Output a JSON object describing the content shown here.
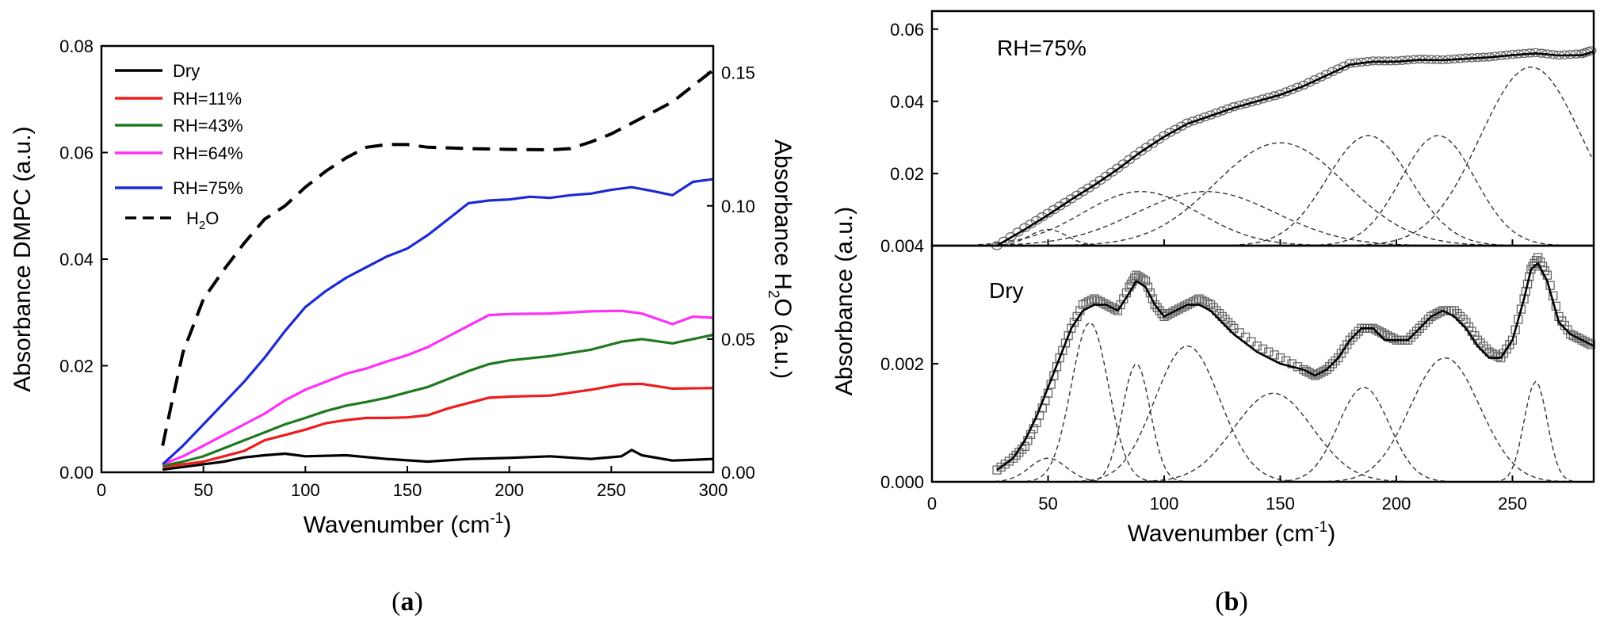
{
  "chart_data": [
    {
      "panel": "(a)",
      "caption_letter": "a",
      "type": "line",
      "xlabel_main": "Wavenumber (cm",
      "xlabel_sup": "-1",
      "xlabel_end": ")",
      "ylabel": "Absorbance DMPC (a.u.)",
      "y2label_main": "Absorbance H",
      "y2label_sub": "2",
      "y2label_end": "O (a.u.)",
      "xlim": [
        0,
        300
      ],
      "ylim": [
        0,
        0.08
      ],
      "y2lim": [
        0,
        0.16
      ],
      "xticks": [
        "0",
        "50",
        "100",
        "150",
        "200",
        "250",
        "300"
      ],
      "yticks": [
        "0.00",
        "0.02",
        "0.04",
        "0.06",
        "0.08"
      ],
      "y2ticks": [
        "0.00",
        "0.05",
        "0.10",
        "0.15"
      ],
      "series": [
        {
          "name": "Dry",
          "color": "#000000",
          "style": "solid",
          "x": [
            30,
            40,
            50,
            60,
            70,
            80,
            90,
            100,
            120,
            140,
            160,
            180,
            200,
            220,
            240,
            255,
            260,
            265,
            280,
            300
          ],
          "y": [
            0.0005,
            0.001,
            0.0015,
            0.002,
            0.0028,
            0.0032,
            0.0035,
            0.003,
            0.0032,
            0.0025,
            0.002,
            0.0025,
            0.0027,
            0.003,
            0.0025,
            0.003,
            0.0042,
            0.0032,
            0.0022,
            0.0025
          ]
        },
        {
          "name": "RH=11%",
          "color": "#ee1c1c",
          "style": "solid",
          "x": [
            30,
            40,
            50,
            60,
            70,
            80,
            90,
            100,
            110,
            120,
            130,
            140,
            150,
            160,
            170,
            180,
            190,
            200,
            220,
            240,
            255,
            265,
            280,
            300
          ],
          "y": [
            0.001,
            0.0015,
            0.002,
            0.003,
            0.004,
            0.006,
            0.007,
            0.008,
            0.0092,
            0.0098,
            0.0102,
            0.0102,
            0.0103,
            0.0107,
            0.012,
            0.013,
            0.014,
            0.0142,
            0.0144,
            0.0155,
            0.0165,
            0.0166,
            0.0157,
            0.0158
          ]
        },
        {
          "name": "RH=43%",
          "color": "#1e7a1e",
          "style": "solid",
          "x": [
            30,
            40,
            50,
            60,
            70,
            80,
            90,
            100,
            110,
            120,
            130,
            140,
            150,
            160,
            170,
            180,
            190,
            200,
            220,
            240,
            255,
            265,
            280,
            300
          ],
          "y": [
            0.0012,
            0.002,
            0.003,
            0.0045,
            0.006,
            0.0075,
            0.009,
            0.0102,
            0.0115,
            0.0125,
            0.0132,
            0.014,
            0.015,
            0.016,
            0.0175,
            0.019,
            0.0203,
            0.021,
            0.0218,
            0.023,
            0.0245,
            0.025,
            0.0242,
            0.0258
          ]
        },
        {
          "name": "RH=64%",
          "color": "#ff2ff7",
          "style": "solid",
          "x": [
            30,
            40,
            50,
            60,
            70,
            80,
            90,
            100,
            110,
            120,
            130,
            140,
            150,
            160,
            170,
            180,
            190,
            200,
            220,
            240,
            255,
            265,
            280,
            290,
            300
          ],
          "y": [
            0.0015,
            0.003,
            0.005,
            0.007,
            0.009,
            0.011,
            0.0135,
            0.0155,
            0.017,
            0.0185,
            0.0195,
            0.0208,
            0.022,
            0.0235,
            0.0255,
            0.0275,
            0.0295,
            0.0297,
            0.0298,
            0.0302,
            0.0303,
            0.0298,
            0.0278,
            0.0292,
            0.029
          ]
        },
        {
          "name": "RH=75%",
          "color": "#1c2ad4",
          "style": "solid",
          "x": [
            30,
            40,
            50,
            60,
            70,
            80,
            90,
            100,
            110,
            120,
            130,
            140,
            150,
            160,
            170,
            180,
            190,
            200,
            210,
            220,
            230,
            240,
            250,
            260,
            270,
            280,
            290,
            300
          ],
          "y": [
            0.0015,
            0.005,
            0.009,
            0.013,
            0.017,
            0.0215,
            0.0265,
            0.031,
            0.034,
            0.0365,
            0.0385,
            0.0405,
            0.042,
            0.0445,
            0.0475,
            0.0505,
            0.051,
            0.0512,
            0.0517,
            0.0515,
            0.052,
            0.0523,
            0.053,
            0.0535,
            0.0528,
            0.052,
            0.0545,
            0.055
          ]
        },
        {
          "name": "H2O",
          "color": "#000000",
          "style": "dashed",
          "axis": "right",
          "x": [
            30,
            35,
            40,
            50,
            60,
            70,
            80,
            90,
            100,
            110,
            120,
            130,
            140,
            150,
            160,
            180,
            200,
            220,
            230,
            240,
            250,
            260,
            270,
            280,
            290,
            300
          ],
          "y": [
            0.01,
            0.028,
            0.045,
            0.065,
            0.076,
            0.086,
            0.095,
            0.1,
            0.107,
            0.113,
            0.118,
            0.122,
            0.123,
            0.123,
            0.122,
            0.1215,
            0.1212,
            0.121,
            0.1215,
            0.124,
            0.127,
            0.131,
            0.135,
            0.139,
            0.145,
            0.151
          ]
        }
      ],
      "legend": {
        "placement": "top-left",
        "entries": [
          "Dry",
          "RH=11%",
          "RH=43%",
          "RH=64%",
          "RH=75%"
        ],
        "h2o_main": "H",
        "h2o_sub": "2",
        "h2o_end": "O"
      }
    },
    {
      "panel": "(b)",
      "caption_letter": "b",
      "type": "line",
      "xlabel_main": "Wavenumber (cm",
      "xlabel_sup": "-1",
      "xlabel_end": ")",
      "ylabel": "Absorbance (a.u.)",
      "xlim": [
        0,
        285
      ],
      "xticks": [
        "0",
        "50",
        "100",
        "150",
        "200",
        "250"
      ],
      "top": {
        "annotation": "RH=75%",
        "ylim": [
          0,
          0.065
        ],
        "yticks": [
          "0.02",
          "0.04",
          "0.06"
        ],
        "baseline": 0,
        "data": {
          "x": [
            28,
            40,
            50,
            60,
            70,
            80,
            90,
            100,
            110,
            120,
            130,
            140,
            150,
            160,
            170,
            180,
            190,
            200,
            210,
            220,
            230,
            240,
            250,
            260,
            270,
            280,
            285
          ],
          "y": [
            0.0,
            0.005,
            0.009,
            0.013,
            0.017,
            0.0215,
            0.0262,
            0.0305,
            0.034,
            0.0362,
            0.0385,
            0.0402,
            0.042,
            0.0445,
            0.0475,
            0.0505,
            0.0512,
            0.0512,
            0.0517,
            0.0515,
            0.052,
            0.0523,
            0.053,
            0.0535,
            0.0528,
            0.0532,
            0.0543
          ]
        },
        "fit": {
          "x": [
            28,
            40,
            50,
            60,
            70,
            80,
            90,
            100,
            110,
            120,
            130,
            140,
            150,
            160,
            170,
            180,
            190,
            200,
            210,
            220,
            230,
            240,
            250,
            260,
            270,
            280,
            285
          ],
          "y": [
            0.0,
            0.0045,
            0.0085,
            0.0128,
            0.0168,
            0.0212,
            0.026,
            0.0302,
            0.0338,
            0.036,
            0.0382,
            0.04,
            0.0418,
            0.0442,
            0.0472,
            0.0502,
            0.051,
            0.051,
            0.0515,
            0.0514,
            0.0518,
            0.0522,
            0.0528,
            0.0533,
            0.0527,
            0.0528,
            0.0538
          ]
        },
        "components": [
          {
            "center": 50,
            "amp": 0.0045,
            "width": 8
          },
          {
            "center": 90,
            "amp": 0.015,
            "width": 25
          },
          {
            "center": 118,
            "amp": 0.015,
            "width": 30
          },
          {
            "center": 150,
            "amp": 0.0285,
            "width": 28
          },
          {
            "center": 188,
            "amp": 0.0305,
            "width": 18
          },
          {
            "center": 218,
            "amp": 0.0305,
            "width": 16
          },
          {
            "center": 258,
            "amp": 0.0495,
            "width": 22
          }
        ]
      },
      "bottom": {
        "annotation": "Dry",
        "ylim": [
          0,
          0.004
        ],
        "yticks": [
          "0.000",
          "0.002",
          "0.004"
        ],
        "baseline": 0,
        "data": {
          "x": [
            28,
            35,
            40,
            45,
            50,
            55,
            60,
            65,
            70,
            75,
            80,
            85,
            88,
            92,
            96,
            100,
            105,
            110,
            115,
            120,
            125,
            130,
            140,
            150,
            160,
            165,
            170,
            175,
            180,
            185,
            190,
            195,
            200,
            205,
            210,
            215,
            220,
            225,
            230,
            235,
            240,
            245,
            250,
            255,
            258,
            261,
            265,
            270,
            275,
            280,
            285
          ],
          "y": [
            0.0002,
            0.0004,
            0.0006,
            0.001,
            0.0015,
            0.0021,
            0.0026,
            0.003,
            0.0031,
            0.003,
            0.0029,
            0.0033,
            0.0035,
            0.0034,
            0.003,
            0.0028,
            0.0029,
            0.003,
            0.0031,
            0.003,
            0.0028,
            0.0026,
            0.0023,
            0.0021,
            0.0019,
            0.0018,
            0.0019,
            0.0021,
            0.0024,
            0.0026,
            0.0026,
            0.0025,
            0.0024,
            0.0024,
            0.0026,
            0.0028,
            0.0029,
            0.0029,
            0.0027,
            0.0024,
            0.0022,
            0.0021,
            0.0024,
            0.0031,
            0.0036,
            0.0038,
            0.0035,
            0.0028,
            0.0025,
            0.0024,
            0.0023
          ]
        },
        "fit": {
          "x": [
            28,
            35,
            40,
            45,
            50,
            55,
            60,
            65,
            70,
            75,
            80,
            85,
            88,
            92,
            96,
            100,
            105,
            110,
            115,
            120,
            125,
            130,
            140,
            150,
            160,
            165,
            170,
            175,
            180,
            185,
            190,
            195,
            200,
            205,
            210,
            215,
            220,
            225,
            230,
            235,
            240,
            245,
            250,
            255,
            258,
            261,
            265,
            270,
            275,
            280,
            285
          ],
          "y": [
            0.0002,
            0.0004,
            0.0007,
            0.0011,
            0.0016,
            0.0021,
            0.0026,
            0.0029,
            0.003,
            0.003,
            0.0029,
            0.0032,
            0.0034,
            0.0033,
            0.003,
            0.0028,
            0.0029,
            0.003,
            0.003,
            0.0029,
            0.0027,
            0.0025,
            0.0022,
            0.002,
            0.0019,
            0.0018,
            0.0019,
            0.0021,
            0.0024,
            0.0026,
            0.0026,
            0.0024,
            0.0024,
            0.0024,
            0.0026,
            0.0028,
            0.0029,
            0.0028,
            0.0026,
            0.0023,
            0.0021,
            0.0021,
            0.0024,
            0.0031,
            0.0036,
            0.0037,
            0.0034,
            0.0027,
            0.0025,
            0.0024,
            0.0023
          ]
        },
        "components": [
          {
            "center": 50,
            "amp": 0.0004,
            "width": 8
          },
          {
            "center": 68,
            "amp": 0.0027,
            "width": 8
          },
          {
            "center": 88,
            "amp": 0.002,
            "width": 6
          },
          {
            "center": 110,
            "amp": 0.0023,
            "width": 14
          },
          {
            "center": 147,
            "amp": 0.0015,
            "width": 17
          },
          {
            "center": 186,
            "amp": 0.0016,
            "width": 11
          },
          {
            "center": 221,
            "amp": 0.0021,
            "width": 15
          },
          {
            "center": 260,
            "amp": 0.0017,
            "width": 5
          }
        ]
      }
    }
  ]
}
